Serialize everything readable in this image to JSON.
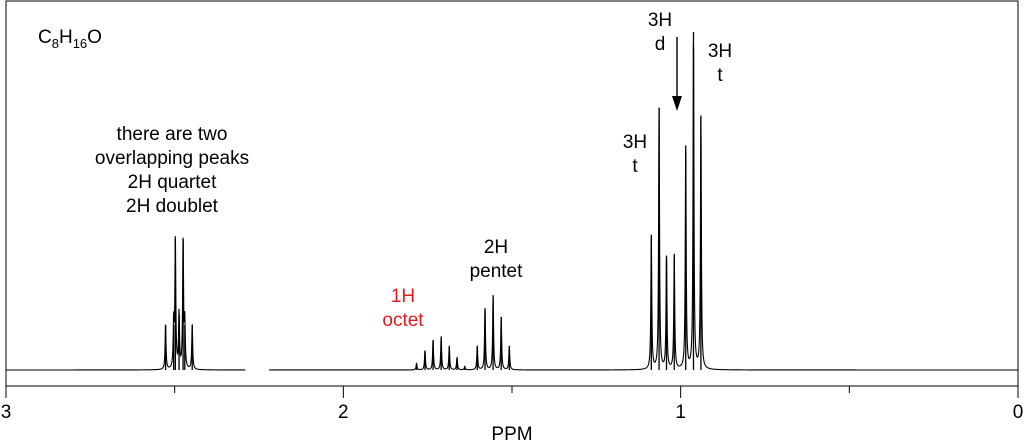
{
  "chart_data": {
    "type": "line",
    "title": "",
    "formula": {
      "prefix": "C",
      "sub1": "8",
      "mid": "H",
      "sub2": "16",
      "suffix": "O"
    },
    "xlabel": "PPM",
    "ylabel": "",
    "xlim": [
      3,
      0
    ],
    "x_reversed": true,
    "ylim": [
      0,
      1
    ],
    "grid": false,
    "major_ticks": [
      3,
      2,
      1,
      0
    ],
    "minor_ticks": [
      2.5,
      1.5,
      0.5
    ],
    "tick_labels": [
      "3",
      "2",
      "1",
      "0"
    ],
    "axis_break": [
      2.29,
      2.22
    ],
    "line_color": "#000000",
    "series": [
      {
        "peaks": [
          {
            "x": 2.527,
            "y": 0.128
          },
          {
            "x": 2.503,
            "y": 0.128
          },
          {
            "x": 2.498,
            "y": 0.372
          },
          {
            "x": 2.487,
            "y": 0.158
          },
          {
            "x": 2.475,
            "y": 0.372
          },
          {
            "x": 2.47,
            "y": 0.128
          },
          {
            "x": 2.448,
            "y": 0.128
          },
          {
            "x": 1.783,
            "y": 0.018
          },
          {
            "x": 1.758,
            "y": 0.055
          },
          {
            "x": 1.734,
            "y": 0.085
          },
          {
            "x": 1.71,
            "y": 0.095
          },
          {
            "x": 1.686,
            "y": 0.068
          },
          {
            "x": 1.663,
            "y": 0.035
          },
          {
            "x": 1.64,
            "y": 0.01
          },
          {
            "x": 1.603,
            "y": 0.068
          },
          {
            "x": 1.58,
            "y": 0.176
          },
          {
            "x": 1.556,
            "y": 0.211
          },
          {
            "x": 1.532,
            "y": 0.151
          },
          {
            "x": 1.508,
            "y": 0.068
          },
          {
            "x": 1.087,
            "y": 0.383
          },
          {
            "x": 1.064,
            "y": 0.745
          },
          {
            "x": 1.042,
            "y": 0.325
          },
          {
            "x": 1.019,
            "y": 0.33
          },
          {
            "x": 0.985,
            "y": 0.638
          },
          {
            "x": 0.962,
            "y": 0.96
          },
          {
            "x": 0.94,
            "y": 0.72
          }
        ]
      }
    ],
    "annotations": [
      {
        "lines": [
          "there are two",
          "overlapping peaks",
          "2H quartet",
          "2H doublet"
        ],
        "color": "#000000"
      },
      {
        "lines": [
          "1H",
          "octet"
        ],
        "color": "#e8191c"
      },
      {
        "lines": [
          "2H",
          "pentet"
        ],
        "color": "#000000"
      },
      {
        "lines": [
          "3H",
          "t"
        ],
        "color": "#000000"
      },
      {
        "lines": [
          "3H",
          "d"
        ],
        "color": "#000000"
      },
      {
        "lines": [
          "3H",
          "t"
        ],
        "color": "#000000"
      }
    ]
  }
}
